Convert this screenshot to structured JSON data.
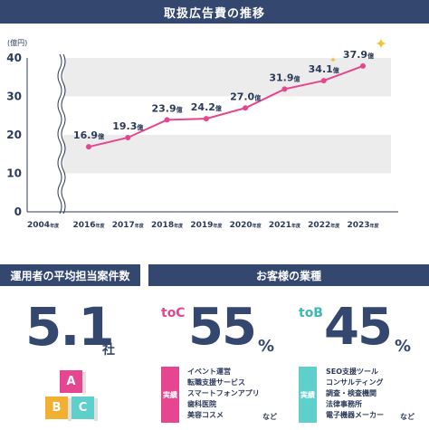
{
  "header": {
    "title": "取扱広告費の推移"
  },
  "chart_data": {
    "type": "line",
    "ylabel": "(億円)",
    "ylim": [
      0,
      40
    ],
    "yticks": [
      0,
      10,
      20,
      30,
      40
    ],
    "baseline_label": {
      "year": "2004",
      "suffix": "年度"
    },
    "categories": [
      {
        "year": "2016",
        "suffix": "年度"
      },
      {
        "year": "2017",
        "suffix": "年度"
      },
      {
        "year": "2018",
        "suffix": "年度"
      },
      {
        "year": "2019",
        "suffix": "年度"
      },
      {
        "year": "2020",
        "suffix": "年度"
      },
      {
        "year": "2021",
        "suffix": "年度"
      },
      {
        "year": "2022",
        "suffix": "年度"
      },
      {
        "year": "2023",
        "suffix": "年度"
      }
    ],
    "values": [
      16.9,
      19.3,
      23.9,
      24.2,
      27.0,
      31.9,
      34.1,
      37.9
    ],
    "value_labels": [
      "16.9",
      "19.3",
      "23.9",
      "24.2",
      "27.0",
      "31.9",
      "34.1",
      "37.9"
    ],
    "value_unit": "億",
    "highlight_index": 7,
    "grid": "alternating-bands",
    "colors": {
      "line": "#e6458f",
      "text": "#2b3a5a",
      "band": "#ececec",
      "highlight": "#e03d92",
      "sparkle": "#f2c232"
    }
  },
  "avg_panel": {
    "title": "運用者の平均担当案件数",
    "value": "5.1",
    "unit": "社",
    "blocks": [
      "A",
      "B",
      "C"
    ]
  },
  "customer_panel": {
    "title": "お客様の業種",
    "segments": [
      {
        "tag": "toC",
        "percent": "55",
        "sign": "%",
        "badge": "実績",
        "examples": [
          "イベント運営",
          "転職支援サービス",
          "スマートフォンアプリ",
          "歯科医院",
          "美容コスメ"
        ],
        "etc": "など",
        "color": "#e6458f"
      },
      {
        "tag": "toB",
        "percent": "45",
        "sign": "%",
        "badge": "実績",
        "examples": [
          "SEO支援ツール",
          "コンサルティング",
          "調査・検査機関",
          "法律事務所",
          "電子機器メーカー"
        ],
        "etc": "など",
        "color": "#5fcfcb"
      }
    ]
  }
}
